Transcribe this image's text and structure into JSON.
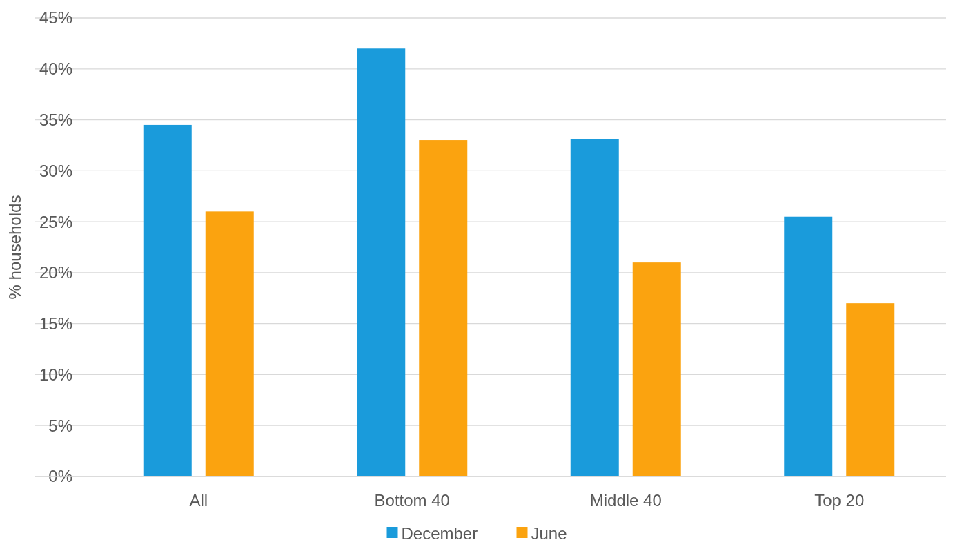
{
  "chart_data": {
    "type": "bar",
    "ylabel": "% households",
    "categories": [
      "All",
      "Bottom 40",
      "Middle 40",
      "Top 20"
    ],
    "series": [
      {
        "name": "December",
        "color": "#1a9bdb",
        "values": [
          34.5,
          42.0,
          33.1,
          25.5
        ]
      },
      {
        "name": "June",
        "color": "#fba30f",
        "values": [
          26.0,
          33.0,
          21.0,
          17.0
        ]
      }
    ],
    "ylim": [
      0,
      45
    ],
    "yticks": [
      {
        "value": 0,
        "label": "0%"
      },
      {
        "value": 5,
        "label": "5%"
      },
      {
        "value": 10,
        "label": "10%"
      },
      {
        "value": 15,
        "label": "15%"
      },
      {
        "value": 20,
        "label": "20%"
      },
      {
        "value": 25,
        "label": "25%"
      },
      {
        "value": 30,
        "label": "30%"
      },
      {
        "value": 35,
        "label": "35%"
      },
      {
        "value": 40,
        "label": "40%"
      },
      {
        "value": 45,
        "label": "45%"
      }
    ],
    "grid": "y",
    "legend": "bottom"
  }
}
